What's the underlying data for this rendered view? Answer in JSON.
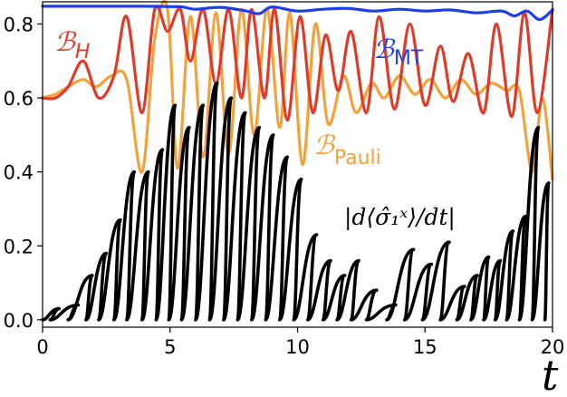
{
  "chart_data": {
    "type": "line",
    "title": "",
    "xlabel": "t",
    "ylabel": "",
    "xlim": [
      0,
      20
    ],
    "ylim": [
      -0.02,
      0.86
    ],
    "grid": false,
    "x_ticks": [
      "0",
      "5",
      "10",
      "15",
      "20"
    ],
    "y_ticks": [
      "0.0",
      "0.2",
      "0.4",
      "0.6",
      "0.8"
    ],
    "annotations": {
      "b_mt": {
        "base": "ℬ",
        "sub": "MT",
        "color": "#1f3fe6"
      },
      "b_h": {
        "base": "ℬ",
        "sub": "H",
        "color": "#e03a2a"
      },
      "b_pauli": {
        "base": "ℬ",
        "sub": "Pauli",
        "color": "#f2a23a"
      },
      "deriv": "|d⟨σ̂₁ˣ⟩/dt|"
    },
    "series": [
      {
        "key": "b_mt",
        "color": "#1f3fe6",
        "x": [
          0,
          2,
          4,
          5,
          5.5,
          6,
          7,
          8,
          8.5,
          9,
          10,
          11,
          12,
          13,
          14,
          15,
          16,
          17,
          18,
          18.5,
          19,
          19.5,
          20
        ],
        "y": [
          0.848,
          0.848,
          0.848,
          0.847,
          0.846,
          0.84,
          0.845,
          0.835,
          0.828,
          0.846,
          0.835,
          0.84,
          0.842,
          0.835,
          0.84,
          0.835,
          0.838,
          0.83,
          0.835,
          0.822,
          0.835,
          0.812,
          0.838
        ]
      },
      {
        "key": "b_h",
        "color": "#e03a2a",
        "x": [
          0,
          0.5,
          1,
          1.6,
          2.2,
          2.8,
          3.3,
          3.9,
          4.4,
          4.9,
          5.4,
          5.8,
          6.3,
          6.8,
          7.3,
          7.8,
          8.2,
          8.7,
          9.1,
          9.6,
          10.1,
          10.6,
          11.1,
          11.6,
          12.1,
          12.7,
          13.2,
          13.8,
          14.4,
          15,
          15.6,
          16.1,
          16.7,
          17.3,
          17.8,
          18.4,
          18.9,
          19.4,
          20
        ],
        "y": [
          0.6,
          0.6,
          0.63,
          0.7,
          0.6,
          0.66,
          0.82,
          0.56,
          0.84,
          0.78,
          0.84,
          0.7,
          0.84,
          0.64,
          0.84,
          0.6,
          0.84,
          0.6,
          0.84,
          0.54,
          0.82,
          0.56,
          0.77,
          0.62,
          0.78,
          0.56,
          0.82,
          0.57,
          0.8,
          0.58,
          0.74,
          0.59,
          0.72,
          0.56,
          0.8,
          0.55,
          0.83,
          0.56,
          0.84
        ]
      },
      {
        "key": "b_pauli",
        "color": "#f2a23a",
        "x": [
          0,
          0.5,
          1,
          1.6,
          2.1,
          2.7,
          3.3,
          3.9,
          4.4,
          4.9,
          5.3,
          5.8,
          6.3,
          6.8,
          7.3,
          7.8,
          8.3,
          8.8,
          9.3,
          9.7,
          10.2,
          10.7,
          11.2,
          11.8,
          12.3,
          12.9,
          13.4,
          14,
          14.6,
          15.2,
          15.8,
          16.4,
          17,
          17.6,
          18.2,
          18.7,
          19.2,
          19.6,
          20
        ],
        "y": [
          0.6,
          0.61,
          0.63,
          0.65,
          0.63,
          0.66,
          0.65,
          0.4,
          0.76,
          0.84,
          0.41,
          0.82,
          0.44,
          0.83,
          0.45,
          0.84,
          0.5,
          0.84,
          0.52,
          0.83,
          0.42,
          0.8,
          0.53,
          0.66,
          0.56,
          0.64,
          0.6,
          0.66,
          0.61,
          0.65,
          0.6,
          0.65,
          0.61,
          0.64,
          0.62,
          0.62,
          0.4,
          0.6,
          0.38
        ]
      }
    ],
    "deriv_peaks": {
      "key": "deriv",
      "color": "#000000",
      "x": [
        0.65,
        1.4,
        1.95,
        2.5,
        3.05,
        3.6,
        4.15,
        4.7,
        5.2,
        5.75,
        6.3,
        6.85,
        7.4,
        7.95,
        8.5,
        9.05,
        9.6,
        10.15,
        10.75,
        11.3,
        11.85,
        12.4,
        13.1,
        13.85,
        14.55,
        15.25,
        15.95,
        16.55,
        17.05,
        17.5,
        17.95,
        18.45,
        18.95,
        19.45,
        19.85
      ],
      "y": [
        0.03,
        0.04,
        0.12,
        0.18,
        0.27,
        0.4,
        0.4,
        0.46,
        0.58,
        0.52,
        0.58,
        0.64,
        0.6,
        0.56,
        0.52,
        0.5,
        0.44,
        0.38,
        0.23,
        0.16,
        0.12,
        0.16,
        0.08,
        0.04,
        0.19,
        0.15,
        0.21,
        0.09,
        0.12,
        0.17,
        0.16,
        0.24,
        0.28,
        0.52,
        0.37
      ],
      "zeros_x": [
        0.3,
        1.0,
        1.7,
        2.2,
        2.8,
        3.3,
        3.9,
        4.45,
        4.95,
        5.45,
        6.0,
        6.55,
        7.1,
        7.65,
        8.2,
        8.75,
        9.3,
        9.85,
        10.4,
        11.0,
        11.55,
        12.1,
        12.7,
        13.5,
        14.2,
        14.9,
        15.6,
        16.25,
        16.8,
        17.3,
        17.75,
        18.2,
        18.7,
        19.2,
        19.7
      ]
    }
  }
}
